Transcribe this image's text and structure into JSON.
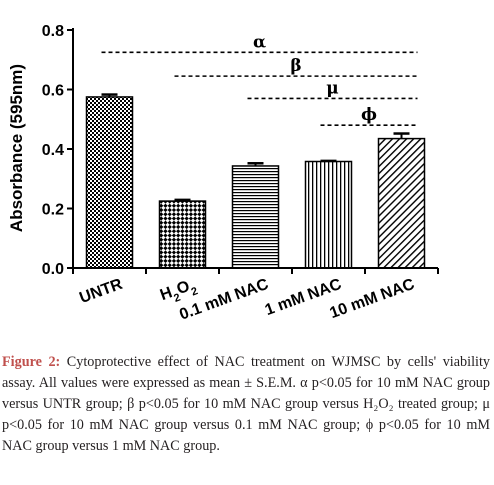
{
  "chart_data": {
    "type": "bar",
    "ylabel": "Absorbance (595nm)",
    "xlabel": "",
    "ylim": [
      0,
      0.8
    ],
    "yticks": [
      "0.0",
      "0.2",
      "0.4",
      "0.6",
      "0.8"
    ],
    "categories": [
      {
        "label": "UNTR",
        "sub": "",
        "tail": ""
      },
      {
        "label": "H",
        "sub": "2",
        "tail": "O"
      },
      {
        "label": "0.1 mM NAC",
        "sub": "",
        "tail": ""
      },
      {
        "label": "1 mM NAC",
        "sub": "",
        "tail": ""
      },
      {
        "label": "10 mM NAC",
        "sub": "",
        "tail": ""
      }
    ],
    "h2o2_tail_sub": "2",
    "values": [
      0.575,
      0.225,
      0.343,
      0.358,
      0.435
    ],
    "errors": [
      0.008,
      0.004,
      0.009,
      0.002,
      0.017
    ],
    "patterns": [
      "checker-fine",
      "checker-diag",
      "horizontal",
      "vertical",
      "diagonal"
    ],
    "significance": [
      {
        "symbol": "α",
        "from": 0,
        "to": 4,
        "y": 0.725
      },
      {
        "symbol": "β",
        "from": 1,
        "to": 4,
        "y": 0.645
      },
      {
        "symbol": "μ",
        "from": 2,
        "to": 4,
        "y": 0.57
      },
      {
        "symbol": "ϕ",
        "from": 3,
        "to": 4,
        "y": 0.48
      }
    ]
  },
  "caption": {
    "label": "Figure 2:",
    "text": " Cytoprotective effect of NAC treatment on WJMSC by cells' viability assay. All values were expressed as mean ± S.E.M. α p<0.05 for 10 mM NAC group versus UNTR group; β p<0.05 for 10 mM NAC group versus H₂O₂ treated group; μ p<0.05 for 10 mM NAC group versus 0.1 mM NAC group; ϕ p<0.05 for 10 mM NAC group versus 1 mM NAC group."
  }
}
